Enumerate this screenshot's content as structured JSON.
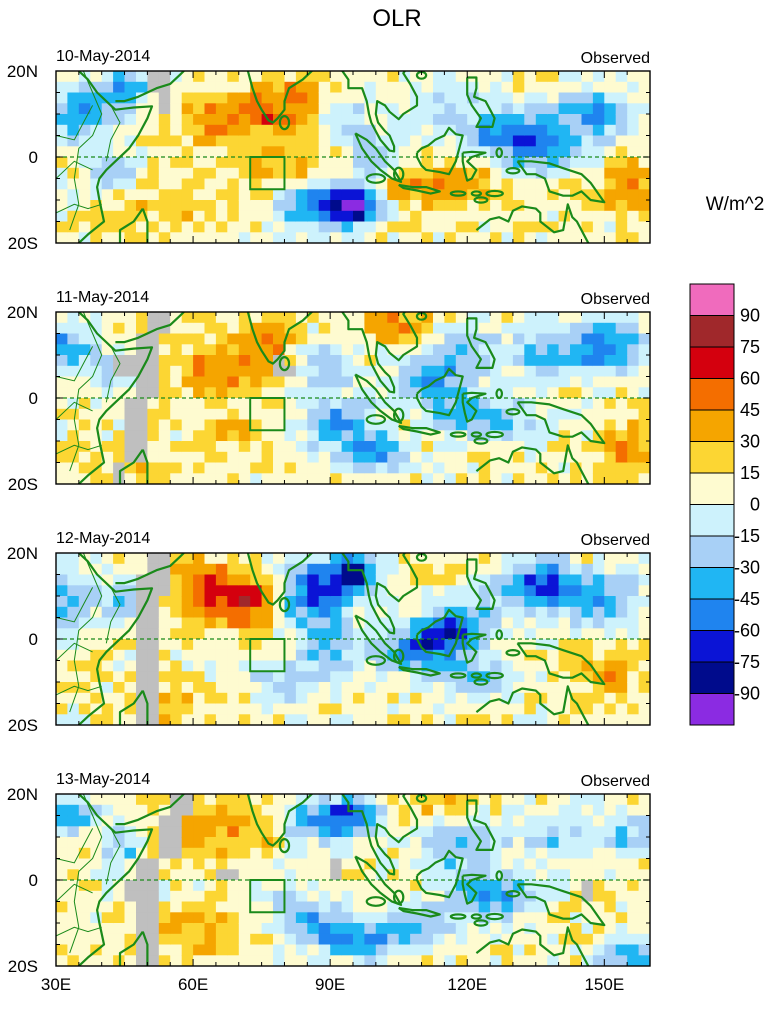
{
  "figure": {
    "title": "OLR",
    "units": "W/m^2"
  },
  "chart_data": {
    "type": "heatmap",
    "title": "OLR",
    "colorbar_label": "W/m^2",
    "colorbar_levels": [
      "90",
      "75",
      "60",
      "45",
      "30",
      "15",
      "0",
      "-15",
      "-30",
      "-45",
      "-60",
      "-75",
      "-90"
    ],
    "colorbar_colors": [
      "#f06bbd",
      "#a0282b",
      "#d4000e",
      "#f46e00",
      "#f5a500",
      "#fcd633",
      "#fefbd0",
      "#cdf2fc",
      "#a8d0f6",
      "#20b6f3",
      "#1f84ef",
      "#0b14d6",
      "#000b8c",
      "#8b2be2"
    ],
    "x_range": [
      30,
      160
    ],
    "y_range": [
      -20,
      20
    ],
    "x_ticks": [
      {
        "v": 30,
        "label": "30E"
      },
      {
        "v": 60,
        "label": "60E"
      },
      {
        "v": 90,
        "label": "90E"
      },
      {
        "v": 120,
        "label": "120E"
      },
      {
        "v": 150,
        "label": "150E"
      }
    ],
    "y_ticks": [
      {
        "v": 20,
        "label": "20N"
      },
      {
        "v": 0,
        "label": "0"
      },
      {
        "v": -20,
        "label": "20S"
      }
    ],
    "panels": [
      {
        "date": "10-May-2014",
        "label": "Observed"
      },
      {
        "date": "11-May-2014",
        "label": "Observed"
      },
      {
        "date": "12-May-2014",
        "label": "Observed"
      },
      {
        "date": "13-May-2014",
        "label": "Observed"
      }
    ],
    "target_box": {
      "lon": [
        72.5,
        80
      ],
      "lat": [
        -7.5,
        0
      ]
    },
    "anomaly_grid_description": "2.5-degree OLR anomaly field (W/m^2), approximated"
  }
}
